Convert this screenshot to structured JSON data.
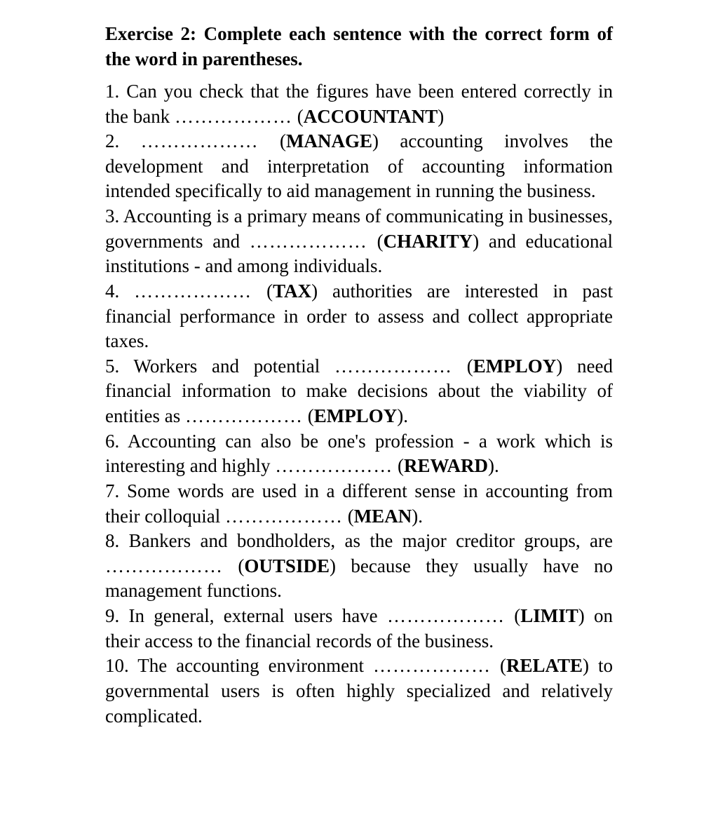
{
  "title": "Exercise 2: Complete each sentence with the correct form of the word in parentheses.",
  "blank": "………………",
  "items": [
    {
      "num": "1",
      "pre": "Can you check that the figures have been entered correctly in the bank ",
      "word": "ACCOUNTANT",
      "post": ""
    },
    {
      "num": "2",
      "pre": "",
      "word": "MANAGE",
      "post": " accounting involves the development and interpretation of accounting information intended specifically to aid management in running the business."
    },
    {
      "num": "3",
      "pre": "Accounting is a primary means of communicating in businesses, governments and ",
      "word": "CHARITY",
      "post": " and educational institutions - and among individuals."
    },
    {
      "num": "4",
      "pre": "",
      "word": "TAX",
      "post": " authorities are interested in past financial performance in order to assess and collect appropriate taxes."
    },
    {
      "num": "5",
      "pre": "Workers and potential ",
      "word": "EMPLOY",
      "mid": " need financial information to make decisions about the viability of entities as ",
      "word2": "EMPLOY",
      "post": "."
    },
    {
      "num": "6",
      "pre": "Accounting can also be one's profession - a work which is interesting and highly ",
      "word": "REWARD",
      "post": "."
    },
    {
      "num": "7",
      "pre": "Some words are used in a different sense in accounting from their colloquial ",
      "word": "MEAN",
      "post": "."
    },
    {
      "num": "8",
      "pre": "Bankers and bondholders, as the major creditor groups, are ",
      "word": "OUTSIDE",
      "post": " because they usually have no management functions."
    },
    {
      "num": "9",
      "pre": "In general, external users have ",
      "word": "LIMIT",
      "post": " on their access to the financial records of the business."
    },
    {
      "num": "10",
      "pre": "The accounting environment ",
      "word": "RELATE",
      "post": " to governmental users is often highly specialized and relatively complicated."
    }
  ]
}
